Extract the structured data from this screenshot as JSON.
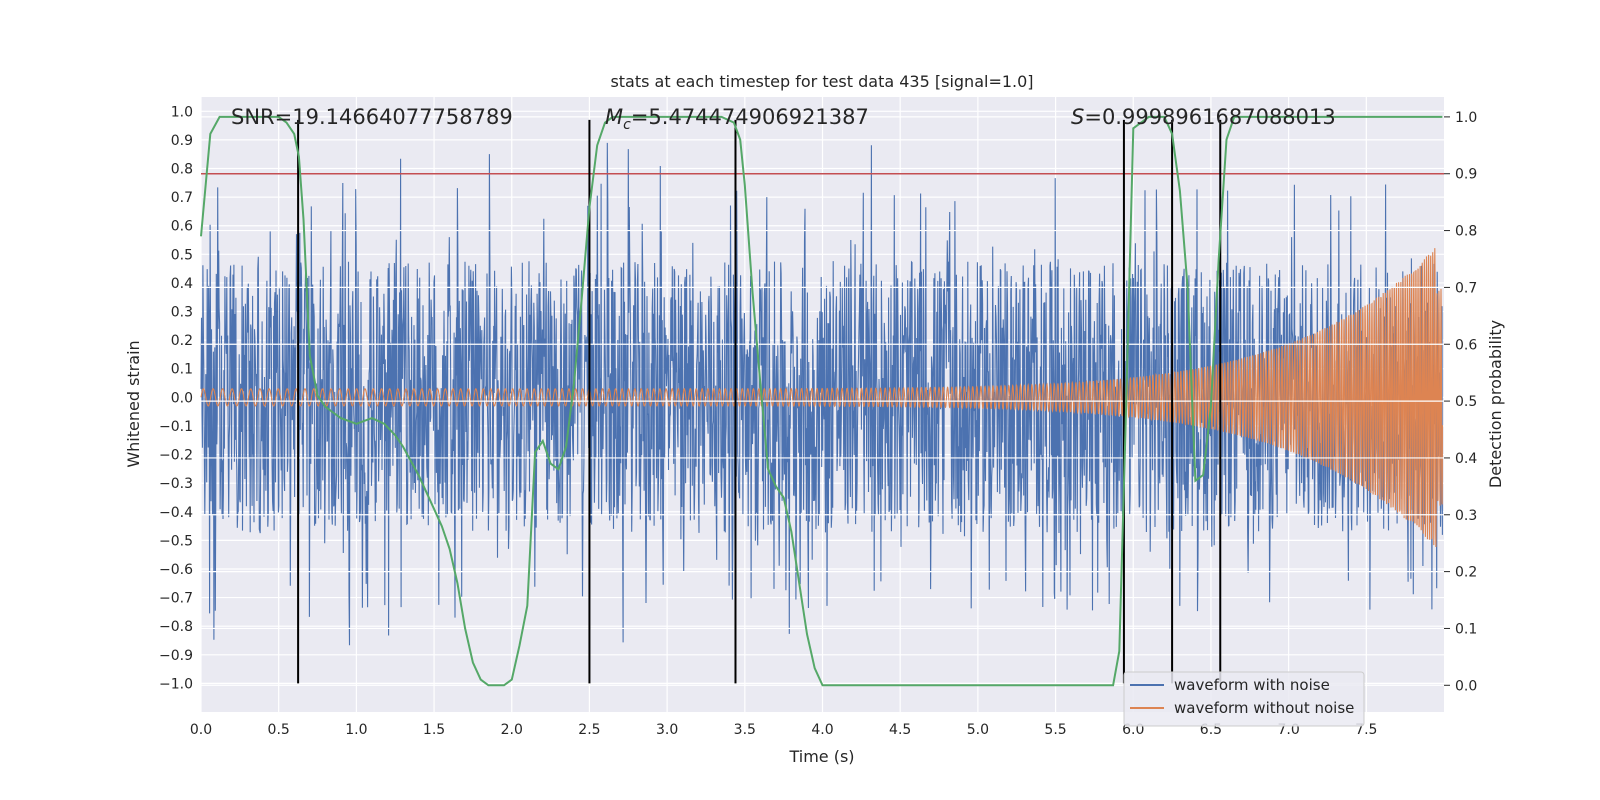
{
  "chart_data": {
    "type": "line",
    "title": "stats at each timestep for test data 435 [signal=1.0]",
    "xlabel": "Time (s)",
    "ylabel": "Whitened strain",
    "y2label": "Detection probability",
    "xlim": [
      0.0,
      8.0
    ],
    "ylim": [
      -1.1,
      1.05
    ],
    "y2lim": [
      -0.047,
      1.035
    ],
    "xticks": [
      "0.0",
      "0.5",
      "1.0",
      "1.5",
      "2.0",
      "2.5",
      "3.0",
      "3.5",
      "4.0",
      "4.5",
      "5.0",
      "5.5",
      "6.0",
      "6.5",
      "7.0",
      "7.5"
    ],
    "yticks": [
      "1.0",
      "0.9",
      "0.8",
      "0.7",
      "0.6",
      "0.5",
      "0.4",
      "0.3",
      "0.2",
      "0.1",
      "0.0",
      "-0.1",
      "-0.2",
      "-0.3",
      "-0.4",
      "-0.5",
      "-0.6",
      "-0.7",
      "-0.8",
      "-0.9",
      "-1.0"
    ],
    "y2ticks": [
      "1.0",
      "0.9",
      "0.8",
      "0.7",
      "0.6",
      "0.5",
      "0.4",
      "0.3",
      "0.2",
      "0.1",
      "0.0"
    ],
    "annotations": {
      "snr": "SNR=19.14664077758789",
      "mc_symbol": "M",
      "mc_sub": "c",
      "mc_value": "=5.474474906921387",
      "s_symbol": "S",
      "s_value": "=0.9998961687088013"
    },
    "threshold": {
      "value": 0.9,
      "axis": "right",
      "color": "#c44e52"
    },
    "event_lines_x": [
      0.625,
      2.5,
      3.44,
      5.94,
      6.25,
      6.56
    ],
    "event_lines_y_range": [
      -1.0,
      0.97
    ],
    "series": [
      {
        "name": "waveform with noise",
        "color": "#4c72b0",
        "kind": "noise",
        "amplitude_range": [
          -0.87,
          0.9
        ]
      },
      {
        "name": "waveform without noise",
        "color": "#dd8452",
        "kind": "chirp",
        "amplitude_start": 0.03,
        "amplitude_end": 0.55
      },
      {
        "name": "detection probability",
        "color": "#55a868",
        "axis": "right",
        "x": [
          0.0,
          0.06,
          0.12,
          0.2,
          0.3,
          0.4,
          0.5,
          0.55,
          0.6,
          0.63,
          0.66,
          0.7,
          0.75,
          0.8,
          0.85,
          0.9,
          1.0,
          1.1,
          1.18,
          1.25,
          1.3,
          1.4,
          1.5,
          1.55,
          1.6,
          1.65,
          1.7,
          1.75,
          1.8,
          1.85,
          1.9,
          1.95,
          2.0,
          2.05,
          2.1,
          2.15,
          2.2,
          2.25,
          2.3,
          2.35,
          2.4,
          2.45,
          2.5,
          2.55,
          2.6,
          2.65,
          2.7,
          2.8,
          3.0,
          3.2,
          3.35,
          3.43,
          3.47,
          3.5,
          3.55,
          3.6,
          3.65,
          3.7,
          3.75,
          3.8,
          3.85,
          3.9,
          3.95,
          4.0,
          4.05,
          4.2,
          4.5,
          4.9,
          5.5,
          5.8,
          5.87,
          5.91,
          5.95,
          6.0,
          6.1,
          6.2,
          6.25,
          6.3,
          6.35,
          6.4,
          6.45,
          6.5,
          6.55,
          6.6,
          6.65,
          6.7,
          7.0,
          7.5,
          7.99
        ],
        "values": [
          0.79,
          0.97,
          1.0,
          1.0,
          1.0,
          1.0,
          1.0,
          0.99,
          0.97,
          0.93,
          0.82,
          0.58,
          0.51,
          0.49,
          0.48,
          0.47,
          0.46,
          0.47,
          0.46,
          0.44,
          0.42,
          0.37,
          0.31,
          0.28,
          0.24,
          0.18,
          0.1,
          0.04,
          0.01,
          0.0,
          0.0,
          0.0,
          0.01,
          0.07,
          0.14,
          0.41,
          0.43,
          0.39,
          0.38,
          0.42,
          0.53,
          0.68,
          0.84,
          0.95,
          0.99,
          1.0,
          1.0,
          1.0,
          1.0,
          1.0,
          1.0,
          0.99,
          0.96,
          0.88,
          0.69,
          0.53,
          0.38,
          0.35,
          0.33,
          0.27,
          0.18,
          0.09,
          0.03,
          0.0,
          0.0,
          0.0,
          0.0,
          0.0,
          0.0,
          0.0,
          0.0,
          0.06,
          0.45,
          0.98,
          1.0,
          1.0,
          0.97,
          0.87,
          0.7,
          0.36,
          0.37,
          0.49,
          0.75,
          0.96,
          1.0,
          1.0,
          1.0,
          1.0,
          1.0
        ]
      }
    ]
  }
}
